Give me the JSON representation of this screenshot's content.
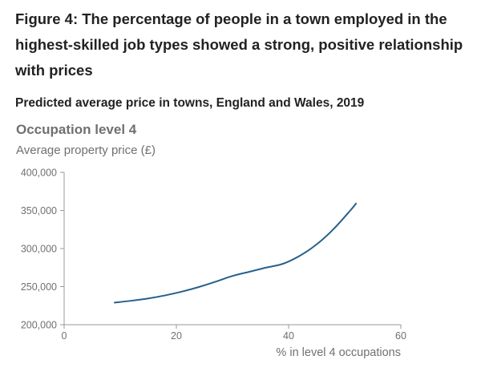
{
  "figure": {
    "title": "Figure 4: The percentage of people in a town employed in the highest-skilled job types showed a strong, positive relationship with prices",
    "subtitle": "Predicted average price in towns, England and Wales, 2019",
    "panel_title": "Occupation level 4"
  },
  "chart_data": {
    "type": "line",
    "ylabel": "Average property price (£)",
    "xlabel": "% in level 4 occupations",
    "xlim": [
      0,
      60
    ],
    "ylim": [
      200000,
      400000
    ],
    "x_ticks": [
      0,
      20,
      40,
      60
    ],
    "x_tick_labels": [
      "0",
      "20",
      "40",
      "60"
    ],
    "y_ticks": [
      200000,
      250000,
      300000,
      350000,
      400000
    ],
    "y_tick_labels": [
      "200,000",
      "250,000",
      "300,000",
      "350,000",
      "400,000"
    ],
    "grid": false,
    "series": [
      {
        "x": [
          9,
          12,
          15,
          18,
          21,
          24,
          27,
          30,
          33,
          36,
          39,
          42,
          45,
          48,
          51,
          52
        ],
        "y": [
          229000,
          231500,
          234500,
          238500,
          243500,
          249500,
          256500,
          264000,
          269500,
          275000,
          280000,
          290500,
          305500,
          325500,
          350000,
          359000
        ]
      }
    ]
  },
  "colors": {
    "line": "#27608b",
    "axis": "#999999",
    "text": "#707070",
    "title": "#222222"
  }
}
